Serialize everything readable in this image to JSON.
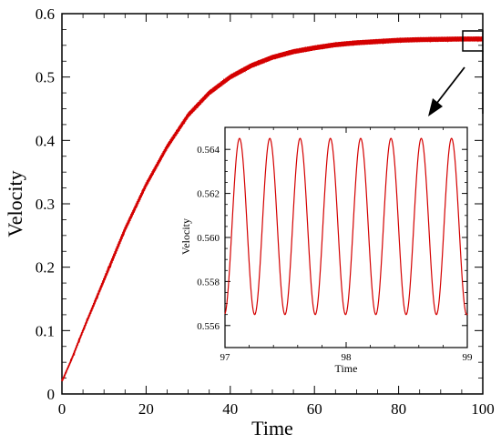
{
  "chart_data": [
    {
      "type": "line",
      "xlabel": "Time",
      "ylabel": "Velocity",
      "xlim": [
        0,
        100
      ],
      "ylim": [
        0,
        0.6
      ],
      "xticks": [
        "0",
        "20",
        "40",
        "60",
        "80",
        "100"
      ],
      "yticks": [
        "0",
        "0.1",
        "0.2",
        "0.3",
        "0.4",
        "0.5",
        "0.6"
      ],
      "grid": false,
      "line_color": "#d40000",
      "series": [
        {
          "x": [
            0,
            2,
            5,
            10,
            15,
            20,
            25,
            30,
            35,
            40,
            45,
            50,
            55,
            60,
            65,
            70,
            75,
            80,
            85,
            90,
            95,
            100
          ],
          "y": [
            0.02,
            0.05,
            0.1,
            0.18,
            0.26,
            0.33,
            0.39,
            0.44,
            0.475,
            0.5,
            0.518,
            0.531,
            0.54,
            0.546,
            0.551,
            0.554,
            0.556,
            0.558,
            0.559,
            0.5595,
            0.56,
            0.56
          ],
          "oscillation_amplitude": 0.004,
          "oscillation_period": 0.25
        }
      ]
    },
    {
      "type": "line",
      "inset": true,
      "xlabel": "Time",
      "ylabel": "Velocity",
      "xlim": [
        97,
        99
      ],
      "ylim": [
        0.555,
        0.565
      ],
      "xticks": [
        "97",
        "98",
        "99"
      ],
      "yticks": [
        "0.556",
        "0.558",
        "0.560",
        "0.562",
        "0.564"
      ],
      "grid": false,
      "line_color": "#d40000",
      "series": [
        {
          "mean": 0.5605,
          "amplitude": 0.004,
          "period": 0.25,
          "phase_peak_time": 97.12
        }
      ]
    }
  ]
}
